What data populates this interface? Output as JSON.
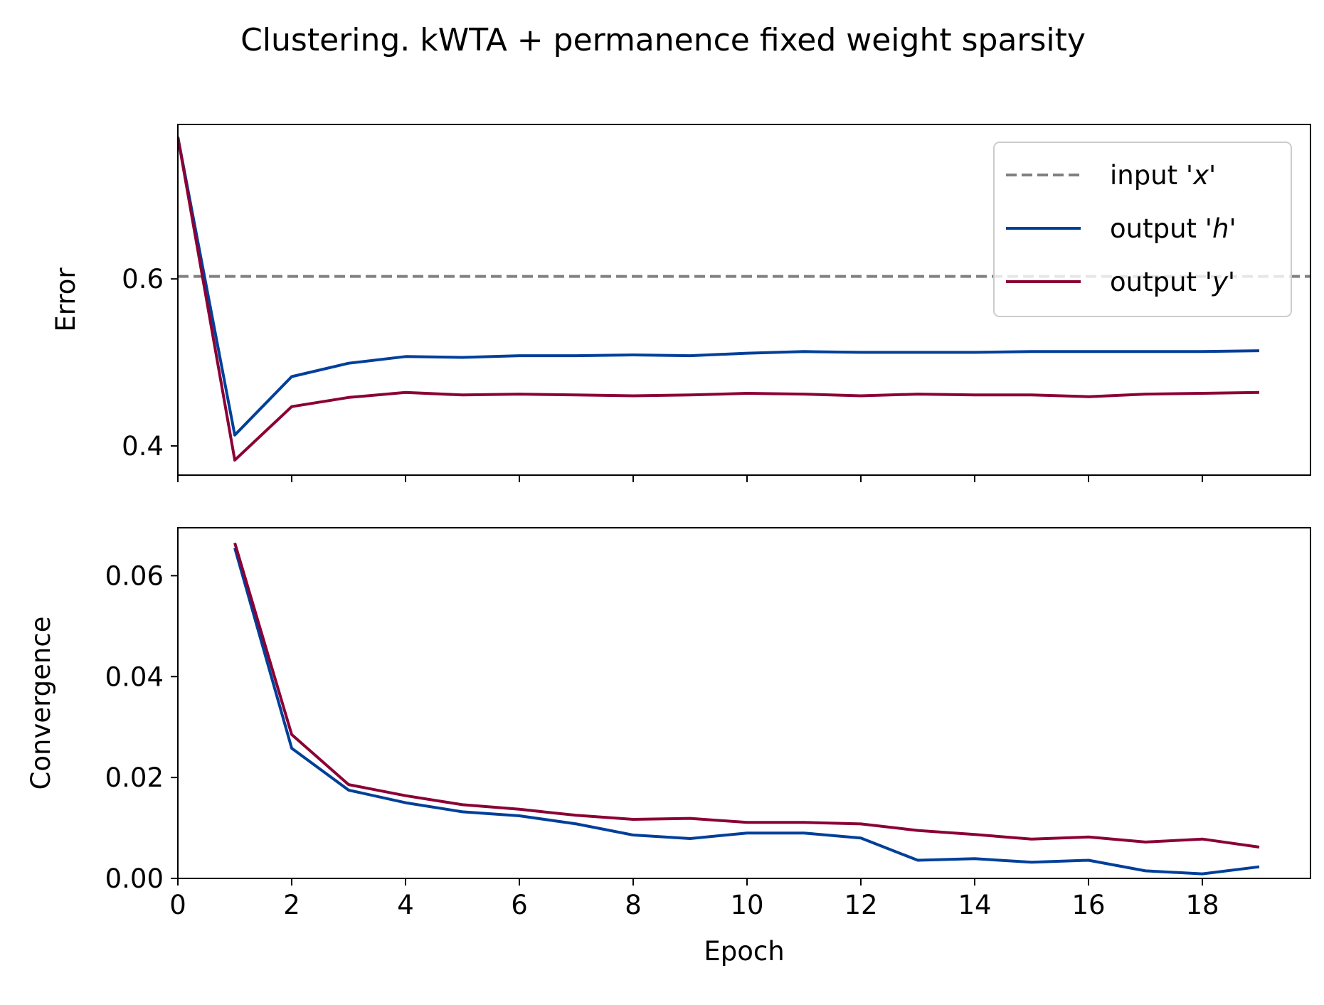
{
  "chart_data": {
    "title": "Clustering. kWTA + permanence fixed weight sparsity",
    "type": "line",
    "colors": {
      "input_x": "#808080",
      "output_h": "#003f9a",
      "output_y": "#8b0035"
    },
    "panels": [
      {
        "id": "error",
        "ylabel": "Error",
        "xlabel": "",
        "xlim": [
          0,
          19.9
        ],
        "ylim": [
          0.365,
          0.785
        ],
        "yticks": [
          0.4,
          0.6
        ],
        "ytick_labels": [
          "0.4",
          "0.6"
        ],
        "xticks": [
          0,
          2,
          4,
          6,
          8,
          10,
          12,
          14,
          16,
          18
        ],
        "xtick_labels": [],
        "legend": {
          "placement": "top-right",
          "entries": [
            {
              "series": "input_x",
              "prefix": "input '",
              "var": "x",
              "suffix": "'"
            },
            {
              "series": "output_h",
              "prefix": "output '",
              "var": "h",
              "suffix": "'"
            },
            {
              "series": "output_y",
              "prefix": "output '",
              "var": "y",
              "suffix": "'"
            }
          ]
        },
        "hlines": [
          {
            "series": "input_x",
            "y": 0.603,
            "style": "dashed"
          }
        ],
        "series": [
          {
            "key": "output_h",
            "x": [
              0,
              1,
              2,
              3,
              4,
              5,
              6,
              7,
              8,
              9,
              10,
              11,
              12,
              13,
              14,
              15,
              16,
              17,
              18,
              19
            ],
            "y": [
              0.77,
              0.413,
              0.483,
              0.499,
              0.507,
              0.506,
              0.508,
              0.508,
              0.509,
              0.508,
              0.511,
              0.513,
              0.512,
              0.512,
              0.512,
              0.513,
              0.513,
              0.513,
              0.513,
              0.514
            ]
          },
          {
            "key": "output_y",
            "x": [
              0,
              1,
              2,
              3,
              4,
              5,
              6,
              7,
              8,
              9,
              10,
              11,
              12,
              13,
              14,
              15,
              16,
              17,
              18,
              19
            ],
            "y": [
              0.77,
              0.383,
              0.447,
              0.458,
              0.464,
              0.461,
              0.462,
              0.461,
              0.46,
              0.461,
              0.463,
              0.462,
              0.46,
              0.462,
              0.461,
              0.461,
              0.459,
              0.462,
              0.463,
              0.464
            ]
          }
        ]
      },
      {
        "id": "convergence",
        "ylabel": "Convergence",
        "xlabel": "Epoch",
        "xlim": [
          0,
          19.9
        ],
        "ylim": [
          0,
          0.0695
        ],
        "yticks": [
          0,
          0.02,
          0.04,
          0.06
        ],
        "ytick_labels": [
          "0.00",
          "0.02",
          "0.04",
          "0.06"
        ],
        "xticks": [
          0,
          2,
          4,
          6,
          8,
          10,
          12,
          14,
          16,
          18
        ],
        "xtick_labels": [
          "0",
          "2",
          "4",
          "6",
          "8",
          "10",
          "12",
          "14",
          "16",
          "18"
        ],
        "series": [
          {
            "key": "output_h",
            "x": [
              1,
              2,
              3,
              4,
              5,
              6,
              7,
              8,
              9,
              10,
              11,
              12,
              13,
              14,
              15,
              16,
              17,
              18,
              19
            ],
            "y": [
              0.0655,
              0.0258,
              0.0175,
              0.015,
              0.0132,
              0.0124,
              0.0108,
              0.0086,
              0.0079,
              0.009,
              0.009,
              0.008,
              0.0036,
              0.0039,
              0.0032,
              0.0036,
              0.0015,
              0.0009,
              0.0023
            ]
          },
          {
            "key": "output_y",
            "x": [
              1,
              2,
              3,
              4,
              5,
              6,
              7,
              8,
              9,
              10,
              11,
              12,
              13,
              14,
              15,
              16,
              17,
              18,
              19
            ],
            "y": [
              0.0665,
              0.0285,
              0.0186,
              0.0164,
              0.0146,
              0.0137,
              0.0125,
              0.0117,
              0.0119,
              0.0111,
              0.0111,
              0.0108,
              0.0095,
              0.0087,
              0.0078,
              0.0082,
              0.0072,
              0.0078,
              0.0062
            ]
          }
        ]
      }
    ]
  }
}
